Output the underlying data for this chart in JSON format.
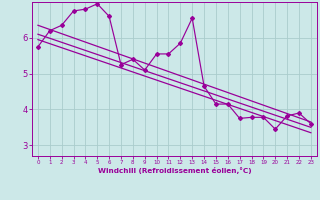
{
  "bg_color": "#cce8e8",
  "line_color": "#990099",
  "grid_color": "#aacccc",
  "xlabel": "Windchill (Refroidissement éolien,°C)",
  "yticks": [
    3,
    4,
    5,
    6
  ],
  "xticks": [
    0,
    1,
    2,
    3,
    4,
    5,
    6,
    7,
    8,
    9,
    10,
    11,
    12,
    13,
    14,
    15,
    16,
    17,
    18,
    19,
    20,
    21,
    22,
    23
  ],
  "xlim": [
    -0.5,
    23.5
  ],
  "ylim": [
    2.7,
    7.0
  ],
  "series1": {
    "x": [
      0,
      1,
      2,
      3,
      4,
      5,
      6,
      7,
      8,
      9,
      10,
      11,
      12,
      13,
      14,
      15,
      16,
      17,
      18,
      19,
      20,
      21,
      22,
      23
    ],
    "y": [
      5.75,
      6.2,
      6.35,
      6.75,
      6.8,
      6.95,
      6.6,
      5.25,
      5.4,
      5.1,
      5.55,
      5.55,
      5.85,
      6.55,
      4.65,
      4.15,
      4.15,
      3.75,
      3.78,
      3.78,
      3.45,
      3.82,
      3.9,
      3.6
    ]
  },
  "trend1": {
    "x": [
      0,
      23
    ],
    "y": [
      6.35,
      3.65
    ]
  },
  "trend2": {
    "x": [
      0,
      23
    ],
    "y": [
      6.1,
      3.5
    ]
  },
  "trend3": {
    "x": [
      0,
      23
    ],
    "y": [
      5.95,
      3.35
    ]
  }
}
